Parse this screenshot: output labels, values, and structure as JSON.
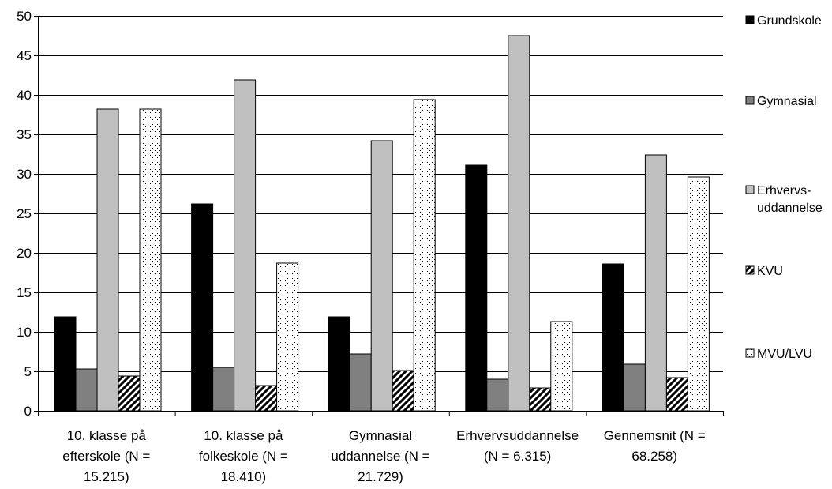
{
  "chart_data": {
    "type": "bar",
    "title": "",
    "xlabel": "",
    "ylabel": "",
    "ylim": [
      0,
      50
    ],
    "yticks": [
      0,
      5,
      10,
      15,
      20,
      25,
      30,
      35,
      40,
      45,
      50
    ],
    "grid": "horizontal",
    "legend_position": "right",
    "categories": [
      [
        "10. klasse på",
        "efterskole (N =",
        "15.215)"
      ],
      [
        "10. klasse på",
        "folkeskole (N =",
        "18.410)"
      ],
      [
        "Gymnasial",
        "uddannelse (N =",
        "21.729)"
      ],
      [
        "Erhvervsuddannelse",
        "(N = 6.315)"
      ],
      [
        "Gennemsnit (N =",
        "68.258)"
      ]
    ],
    "series": [
      {
        "name": [
          "Grundskole"
        ],
        "values": [
          11.9,
          26.2,
          11.9,
          31.1,
          18.6
        ],
        "fill": "#000000",
        "pattern": "solid"
      },
      {
        "name": [
          "Gymnasial"
        ],
        "values": [
          5.3,
          5.5,
          7.2,
          4.0,
          5.9
        ],
        "fill": "#808080",
        "pattern": "solid"
      },
      {
        "name": [
          "Erhvervs-",
          "uddannelse"
        ],
        "values": [
          38.2,
          41.9,
          34.2,
          47.5,
          32.4
        ],
        "fill": "#c0c0c0",
        "pattern": "solid"
      },
      {
        "name": [
          "KVU"
        ],
        "values": [
          4.4,
          3.2,
          5.1,
          2.9,
          4.2
        ],
        "fill": "#ffffff",
        "pattern": "diagonal"
      },
      {
        "name": [
          "MVU/LVU"
        ],
        "values": [
          38.2,
          18.7,
          39.4,
          11.3,
          29.6
        ],
        "fill": "#ffffff",
        "pattern": "dots"
      }
    ]
  }
}
